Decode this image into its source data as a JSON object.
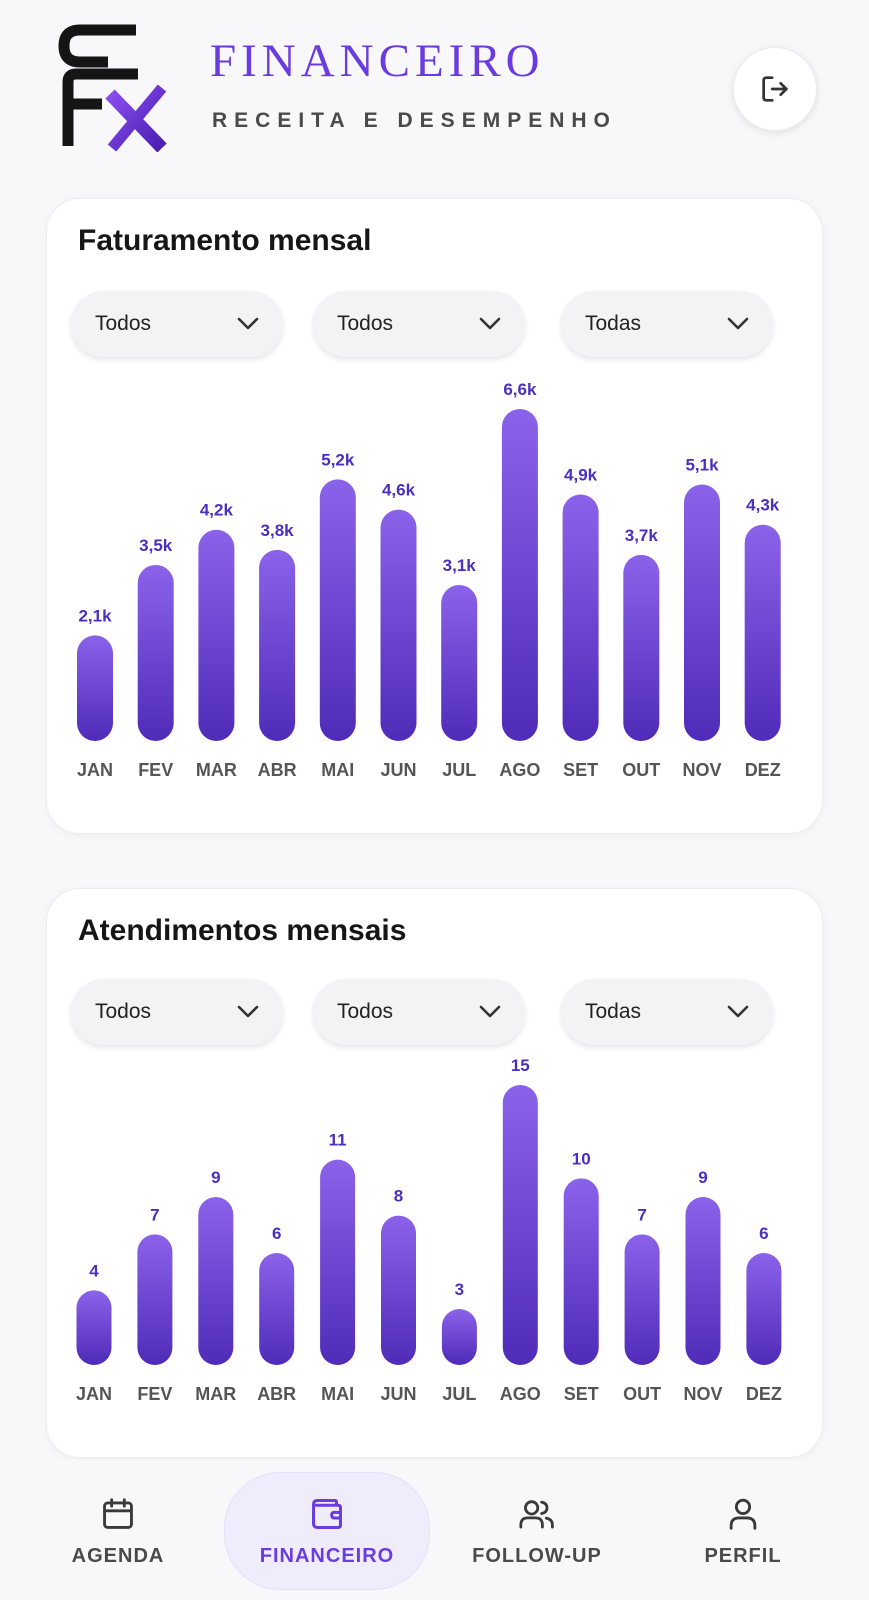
{
  "header": {
    "title": "FINANCEIRO",
    "subtitle": "RECEITA E DESEMPENHO",
    "logo_icon": "sfx-logo",
    "logout_icon": "logout-icon"
  },
  "revenue_card": {
    "title": "Faturamento mensal",
    "filters": [
      {
        "value": "Todos"
      },
      {
        "value": "Todos"
      },
      {
        "value": "Todas"
      }
    ],
    "chart_data": {
      "type": "bar",
      "categories": [
        "JAN",
        "FEV",
        "MAR",
        "ABR",
        "MAI",
        "JUN",
        "JUL",
        "AGO",
        "SET",
        "OUT",
        "NOV",
        "DEZ"
      ],
      "values": [
        2.1,
        3.5,
        4.2,
        3.8,
        5.2,
        4.6,
        3.1,
        6.6,
        4.9,
        3.7,
        5.1,
        4.3
      ],
      "data_labels": [
        "2,1k",
        "3,5k",
        "4,2k",
        "3,8k",
        "5,2k",
        "4,6k",
        "3,1k",
        "6,6k",
        "4,9k",
        "3,7k",
        "5,1k",
        "4,3k"
      ],
      "title": "Faturamento mensal",
      "xlabel": "",
      "ylabel": "",
      "ylim": [
        0,
        6.6
      ],
      "grid": false
    }
  },
  "appointments_card": {
    "title": "Atendimentos mensais",
    "filters": [
      {
        "value": "Todos"
      },
      {
        "value": "Todos"
      },
      {
        "value": "Todas"
      }
    ],
    "chart_data": {
      "type": "bar",
      "categories": [
        "JAN",
        "FEV",
        "MAR",
        "ABR",
        "MAI",
        "JUN",
        "JUL",
        "AGO",
        "SET",
        "OUT",
        "NOV",
        "DEZ"
      ],
      "values": [
        4,
        7,
        9,
        6,
        11,
        8,
        3,
        15,
        10,
        7,
        9,
        6
      ],
      "data_labels": [
        "4",
        "7",
        "9",
        "6",
        "11",
        "8",
        "3",
        "15",
        "10",
        "7",
        "9",
        "6"
      ],
      "title": "Atendimentos mensais",
      "xlabel": "",
      "ylabel": "",
      "ylim": [
        0,
        15
      ],
      "grid": false
    }
  },
  "colors": {
    "accent": "#6a3ce0",
    "bar_top": "#8b62ea",
    "bar_bottom": "#4f2bb8",
    "label": "#4b2fbf"
  },
  "bottom_nav": {
    "items": [
      {
        "label": "AGENDA",
        "icon": "calendar-icon",
        "active": false
      },
      {
        "label": "FINANCEIRO",
        "icon": "wallet-icon",
        "active": true
      },
      {
        "label": "FOLLOW-UP",
        "icon": "users-icon",
        "active": false
      },
      {
        "label": "PERFIL",
        "icon": "user-icon",
        "active": false
      }
    ]
  }
}
